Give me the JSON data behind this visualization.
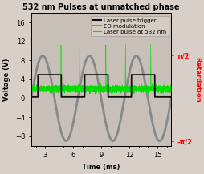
{
  "title": "532 nm Pulses at unmatched phase",
  "xlabel": "Time (ms)",
  "ylabel_left": "Voltage (V)",
  "ylabel_right": "Retardation",
  "right_yticks": [
    "π/2",
    "-π/2"
  ],
  "right_ytick_vals": [
    9.0,
    -9.0
  ],
  "ylim": [
    -10,
    18
  ],
  "xlim": [
    1.5,
    16.5
  ],
  "xticks": [
    3,
    6,
    9,
    12,
    15
  ],
  "yticks": [
    -8,
    -4,
    0,
    4,
    8,
    12,
    16
  ],
  "bg_color": "#d8d0c8",
  "plot_bg_color": "#c8c0b8",
  "sine_color": "#888888",
  "square_color": "#111111",
  "laser_color": "#00dd00",
  "sine_amplitude": 9.0,
  "sine_period_ms": 5.0,
  "sine_phase_rad": 1.88,
  "square_high": 5.0,
  "square_low": 0.3,
  "square_period_ms": 5.0,
  "square_phase_rad": 2.8,
  "laser_baseline": 2.0,
  "laser_noise_std": 0.3,
  "laser_spike_height": 9.0,
  "laser_spike_positions": [
    4.7,
    6.7,
    9.5,
    11.6,
    14.3
  ],
  "legend_labels": [
    "Laser pulse trigger",
    "EO modulation",
    "Laser pulse at 532 nm"
  ],
  "legend_colors": [
    "#111111",
    "#888888",
    "#00dd00"
  ],
  "legend_lw": [
    1.5,
    1.5,
    0.8
  ],
  "title_fontsize": 7,
  "label_fontsize": 6,
  "tick_fontsize": 6,
  "legend_fontsize": 5
}
